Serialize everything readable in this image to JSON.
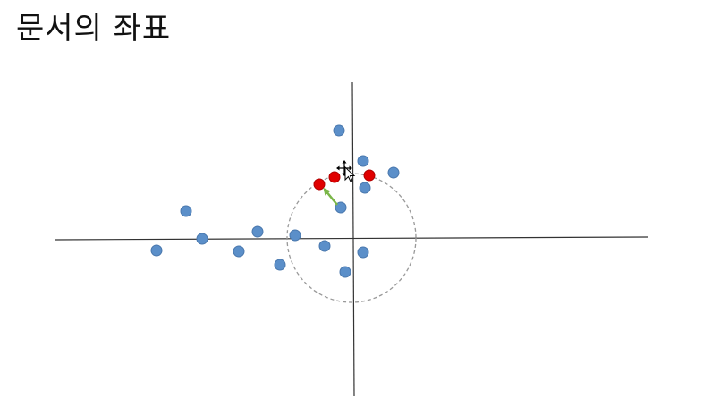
{
  "slide": {
    "title": "문서의 좌표"
  },
  "colors": {
    "axis": "#333333",
    "document_point": "#5b8fc9",
    "document_point_stroke": "#4a78ad",
    "highlighted_point": "#e00000",
    "highlighted_point_stroke": "#b00000",
    "arrow": "#7ab648",
    "radius_circle": "#999999"
  },
  "icons": {
    "cursor": "move-cursor-icon"
  }
}
